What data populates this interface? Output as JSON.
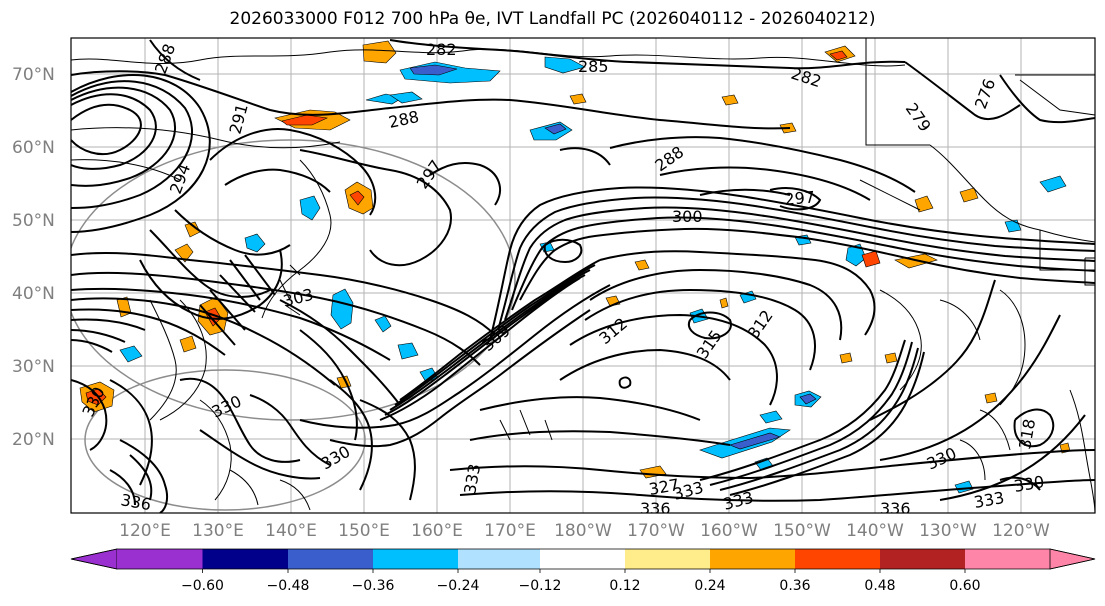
{
  "title": "2026033000 F012 700 hPa θe, IVT Landfall PC (2026040112 - 2026040212)",
  "latitude_labels": [
    "70°N",
    "60°N",
    "50°N",
    "40°N",
    "30°N",
    "20°N"
  ],
  "longitude_labels": [
    "120°E",
    "130°E",
    "140°E",
    "150°E",
    "160°E",
    "170°E",
    "180°W",
    "170°W",
    "160°W",
    "150°W",
    "140°W",
    "130°W",
    "120°W"
  ],
  "contour_labels": [
    "282",
    "285",
    "282",
    "279",
    "276",
    "288",
    "288",
    "288",
    "294",
    "297",
    "300",
    "297",
    "303",
    "312",
    "315",
    "312",
    "309",
    "330",
    "330",
    "318",
    "330",
    "336",
    "333",
    "327",
    "333",
    "336",
    "333",
    "330",
    "333",
    "336",
    "330",
    "291"
  ],
  "colorbar": {
    "ticks": [
      "−0.60",
      "−0.48",
      "−0.36",
      "−0.24",
      "−0.12",
      "0.12",
      "0.24",
      "0.36",
      "0.48",
      "0.60"
    ],
    "colors": [
      "#9b30d0",
      "#00008b",
      "#3a5fcd",
      "#00bfff",
      "#b0e2ff",
      "#ffffff",
      "#ffec8b",
      "#ffa500",
      "#ff4500",
      "#b22222",
      "#ff85a8",
      "#ff85a8"
    ]
  }
}
